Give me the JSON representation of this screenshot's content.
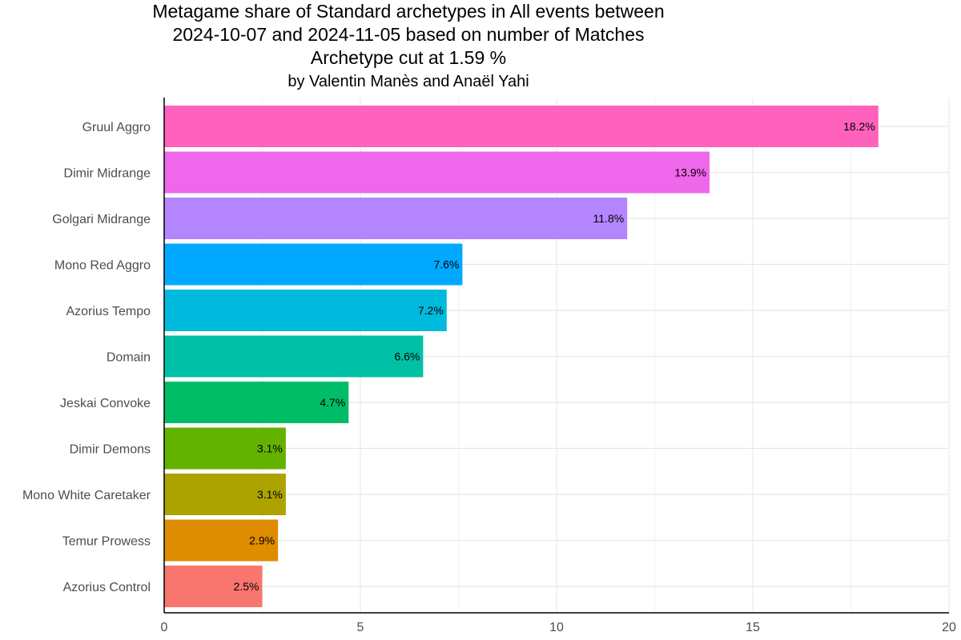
{
  "chart_data": {
    "type": "bar",
    "orientation": "horizontal",
    "title": [
      "Metagame share of Standard archetypes in All events between",
      "2024-10-07 and 2024-11-05 based on number of Matches",
      "Archetype cut at 1.59 %"
    ],
    "subtitle": "by Valentin Manès and Anaël Yahi",
    "xlabel": "",
    "ylabel": "",
    "xlim": [
      0,
      20
    ],
    "xticks": [
      0,
      5,
      10,
      15,
      20
    ],
    "grid": true,
    "legend": "none",
    "categories": [
      "Gruul Aggro",
      "Dimir Midrange",
      "Golgari Midrange",
      "Mono Red Aggro",
      "Azorius Tempo",
      "Domain",
      "Jeskai Convoke",
      "Dimir Demons",
      "Mono White Caretaker",
      "Temur Prowess",
      "Azorius Control"
    ],
    "values": [
      18.2,
      13.9,
      11.8,
      7.6,
      7.2,
      6.6,
      4.7,
      3.1,
      3.1,
      2.9,
      2.5
    ],
    "labels": [
      "18.2%",
      "13.9%",
      "11.8%",
      "7.6%",
      "7.2%",
      "6.6%",
      "4.7%",
      "3.1%",
      "3.1%",
      "2.9%",
      "2.5%"
    ],
    "colors": [
      "#FF62BC",
      "#EF67EB",
      "#B385FF",
      "#00A9FF",
      "#00BADE",
      "#00C1A6",
      "#00BE67",
      "#64B200",
      "#ACA300",
      "#DE8C00",
      "#F8766D"
    ]
  }
}
